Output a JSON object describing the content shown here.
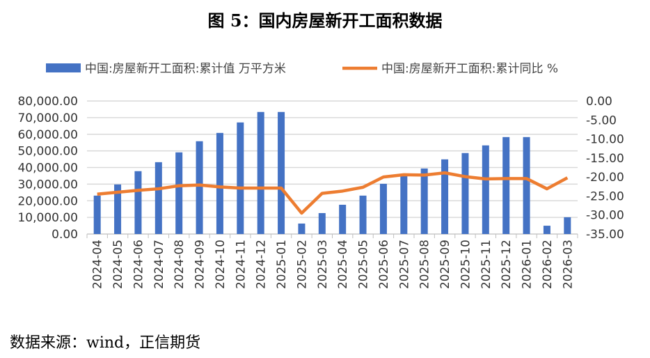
{
  "chart_data": {
    "type": "bar+line",
    "title": "图 5：国内房屋新开工面积数据",
    "categories": [
      "2024-04",
      "2024-05",
      "2024-06",
      "2024-07",
      "2024-08",
      "2024-09",
      "2024-10",
      "2024-11",
      "2024-12",
      "2025-01",
      "2025-02",
      "2025-03",
      "2025-04",
      "2025-05",
      "2025-06",
      "2025-07",
      "2025-08",
      "2025-09",
      "2025-10",
      "2025-11",
      "2025-12",
      "2026-01",
      "2026-02",
      "2026-03"
    ],
    "series": [
      {
        "name": "中国:房屋新开工面积:累计值 万平方米",
        "type": "bar",
        "axis": "left",
        "color": "#4472C4",
        "values": [
          23100,
          29800,
          37800,
          43200,
          49100,
          55800,
          60800,
          67100,
          73400,
          73400,
          6300,
          12600,
          17600,
          23100,
          30200,
          34800,
          39400,
          44900,
          48700,
          53300,
          58300,
          58300,
          5000,
          10100
        ]
      },
      {
        "name": "中国:房屋新开工面积:累计同比 %",
        "type": "line",
        "axis": "right",
        "color": "#ED7D31",
        "values": [
          -24.5,
          -24.0,
          -23.5,
          -23.1,
          -22.3,
          -22.1,
          -22.6,
          -22.9,
          -22.9,
          -22.9,
          -29.5,
          -24.3,
          -23.7,
          -22.7,
          -20.0,
          -19.4,
          -19.5,
          -18.9,
          -19.9,
          -20.5,
          -20.4,
          -20.4,
          -23.1,
          -20.2
        ]
      }
    ],
    "left_axis": {
      "ylim": [
        0,
        80000
      ],
      "ticks": [
        "80,000.00",
        "70,000.00",
        "60,000.00",
        "50,000.00",
        "40,000.00",
        "30,000.00",
        "20,000.00",
        "10,000.00",
        "0.00"
      ]
    },
    "right_axis": {
      "ylim": [
        -35,
        0
      ],
      "ticks": [
        "0.00",
        "-5.00",
        "-10.00",
        "-15.00",
        "-20.00",
        "-25.00",
        "-30.00",
        "-35.00"
      ]
    },
    "grid": true,
    "legend_position": "top"
  },
  "source": "数据来源：wind，正信期货"
}
